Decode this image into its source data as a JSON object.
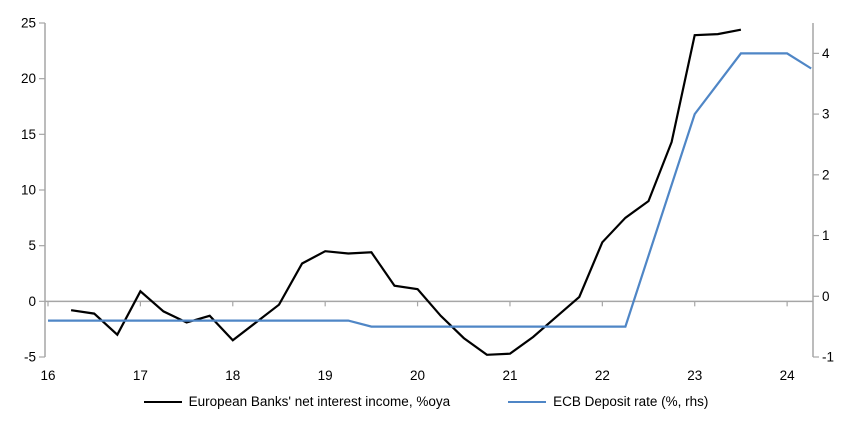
{
  "chart_data": {
    "type": "line",
    "title": "",
    "x_axis": {
      "min": 16,
      "max": 24.28,
      "ticks": [
        16,
        17,
        18,
        19,
        20,
        21,
        22,
        23,
        24
      ],
      "tick_labels": [
        "16",
        "17",
        "18",
        "19",
        "20",
        "21",
        "22",
        "23",
        "24"
      ]
    },
    "left_axis": {
      "min": -5,
      "max": 25,
      "ticks": [
        25,
        20,
        15,
        10,
        5,
        0,
        -5
      ],
      "tick_labels": [
        "25",
        "20",
        "15",
        "10",
        "5",
        "0",
        "-5"
      ]
    },
    "right_axis": {
      "min": -1,
      "max": 4.5,
      "ticks": [
        4,
        3,
        2,
        1,
        0,
        -1
      ],
      "tick_labels": [
        "4",
        "3",
        "2",
        "1",
        "0",
        "-1"
      ]
    },
    "grid": "zero-line-only",
    "legend_position": "bottom",
    "series": [
      {
        "name": "European Banks' net interest income, %oya",
        "axis": "left",
        "color": "#000000",
        "points": [
          [
            16.25,
            -0.8
          ],
          [
            16.5,
            -1.1
          ],
          [
            16.75,
            -3.0
          ],
          [
            17.0,
            0.9
          ],
          [
            17.25,
            -0.9
          ],
          [
            17.5,
            -1.9
          ],
          [
            17.75,
            -1.3
          ],
          [
            18.0,
            -3.5
          ],
          [
            18.25,
            -1.9
          ],
          [
            18.5,
            -0.3
          ],
          [
            18.75,
            3.4
          ],
          [
            19.0,
            4.5
          ],
          [
            19.25,
            4.3
          ],
          [
            19.5,
            4.4
          ],
          [
            19.75,
            1.4
          ],
          [
            20.0,
            1.1
          ],
          [
            20.25,
            -1.3
          ],
          [
            20.5,
            -3.3
          ],
          [
            20.75,
            -4.8
          ],
          [
            21.0,
            -4.7
          ],
          [
            21.25,
            -3.2
          ],
          [
            21.5,
            -1.4
          ],
          [
            21.75,
            0.4
          ],
          [
            22.0,
            5.3
          ],
          [
            22.25,
            7.5
          ],
          [
            22.5,
            9.0
          ],
          [
            22.75,
            14.3
          ],
          [
            23.0,
            23.9
          ],
          [
            23.25,
            24.0
          ],
          [
            23.5,
            24.4
          ]
        ]
      },
      {
        "name": "ECB Deposit rate (%, rhs)",
        "axis": "right",
        "color": "#4f86c6",
        "points": [
          [
            16.0,
            -0.4
          ],
          [
            19.25,
            -0.4
          ],
          [
            19.5,
            -0.5
          ],
          [
            22.25,
            -0.5
          ],
          [
            23.0,
            3.0
          ],
          [
            23.5,
            4.0
          ],
          [
            24.0,
            4.0
          ],
          [
            24.26,
            3.75
          ]
        ]
      }
    ]
  },
  "colors": {
    "axis_gray": "#a6a6a6",
    "text": "#000000",
    "background": "#ffffff"
  }
}
